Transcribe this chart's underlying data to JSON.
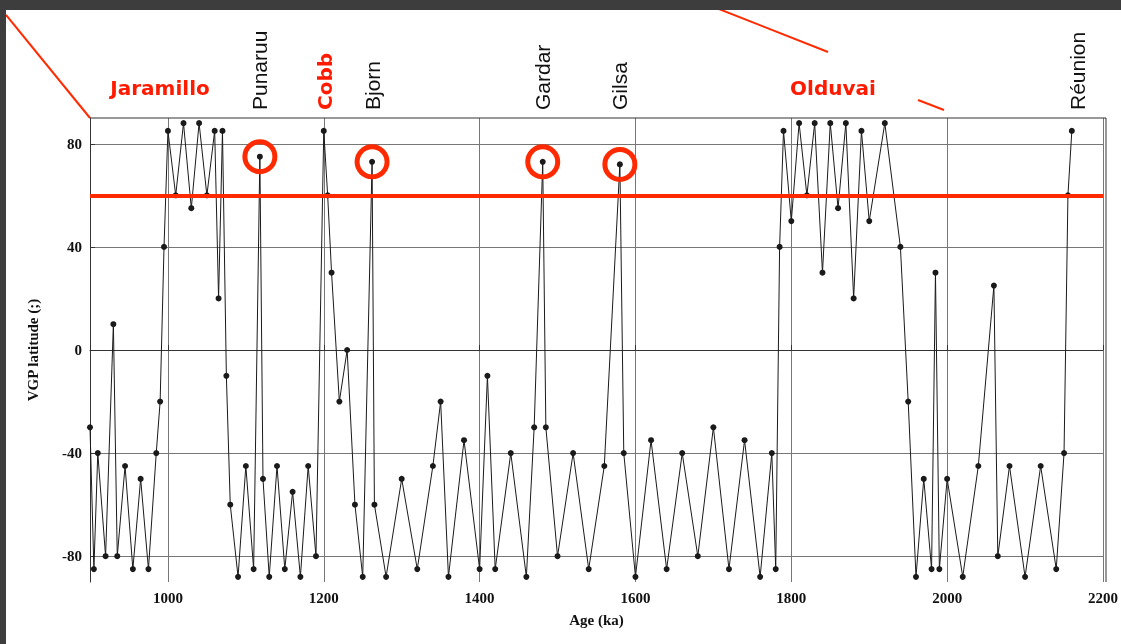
{
  "chart_data": {
    "type": "line",
    "xlabel": "Age (ka)",
    "ylabel": "VGP latitude (;)",
    "annotations": [
      "Jaramillo",
      {
        "text": "Punaruu",
        "x": 1118,
        "y": 75
      },
      "Cobb",
      {
        "text": "Bjorn",
        "x": 1262,
        "y": 73
      },
      {
        "text": "Gardar",
        "x": 1481,
        "y": 73
      },
      {
        "text": "Gilsa",
        "x": 1580,
        "y": 72
      },
      "Olduvai",
      "Réunion"
    ],
    "xlim": [
      900,
      2200
    ],
    "xticks": [
      1000,
      1200,
      1400,
      1600,
      1800,
      2000,
      2200
    ],
    "ylim": [
      -90,
      90
    ],
    "yticks": [
      -80,
      -40,
      0,
      40,
      80
    ],
    "grid": true,
    "marker": "circle",
    "line_style": "solid",
    "ref_lines": [
      {
        "axis": "y",
        "value": 60,
        "color": "#ff2a00"
      }
    ],
    "series": [
      {
        "color": "#1a1a1a",
        "x": [
          900,
          905,
          910,
          920,
          930,
          935,
          945,
          955,
          965,
          975,
          985,
          990,
          995,
          1000,
          1010,
          1020,
          1030,
          1040,
          1050,
          1060,
          1065,
          1070,
          1075,
          1080,
          1090,
          1100,
          1110,
          1118,
          1122,
          1130,
          1140,
          1150,
          1160,
          1170,
          1180,
          1190,
          1200,
          1205,
          1210,
          1220,
          1230,
          1240,
          1250,
          1262,
          1265,
          1280,
          1300,
          1320,
          1340,
          1350,
          1360,
          1380,
          1400,
          1410,
          1420,
          1440,
          1460,
          1470,
          1481,
          1485,
          1500,
          1520,
          1540,
          1560,
          1580,
          1585,
          1600,
          1620,
          1640,
          1660,
          1680,
          1700,
          1720,
          1740,
          1760,
          1775,
          1780,
          1785,
          1790,
          1800,
          1810,
          1820,
          1830,
          1840,
          1850,
          1860,
          1870,
          1880,
          1890,
          1900,
          1920,
          1940,
          1950,
          1960,
          1970,
          1980,
          1985,
          1990,
          2000,
          2020,
          2040,
          2060,
          2065,
          2080,
          2100,
          2120,
          2140,
          2150,
          2155,
          2160
        ],
        "values": [
          -30,
          -85,
          -40,
          -80,
          10,
          -80,
          -45,
          -85,
          -50,
          -85,
          -40,
          -20,
          40,
          85,
          60,
          88,
          55,
          88,
          60,
          85,
          20,
          85,
          -10,
          -60,
          -88,
          -45,
          -85,
          75,
          -50,
          -88,
          -45,
          -85,
          -55,
          -88,
          -45,
          -80,
          85,
          60,
          30,
          -20,
          0,
          -60,
          -88,
          73,
          -60,
          -88,
          -50,
          -85,
          -45,
          -20,
          -88,
          -35,
          -85,
          -10,
          -85,
          -40,
          -88,
          -30,
          73,
          -30,
          -80,
          -40,
          -85,
          -45,
          72,
          -40,
          -88,
          -35,
          -85,
          -40,
          -80,
          -30,
          -85,
          -35,
          -88,
          -40,
          -85,
          40,
          85,
          50,
          88,
          60,
          88,
          30,
          88,
          55,
          88,
          20,
          85,
          50,
          88,
          40,
          -20,
          -88,
          -50,
          -85,
          30,
          -85,
          -50,
          -88,
          -45,
          25,
          -80,
          -45,
          -88,
          -45,
          -85,
          -40,
          60,
          85
        ]
      }
    ]
  }
}
